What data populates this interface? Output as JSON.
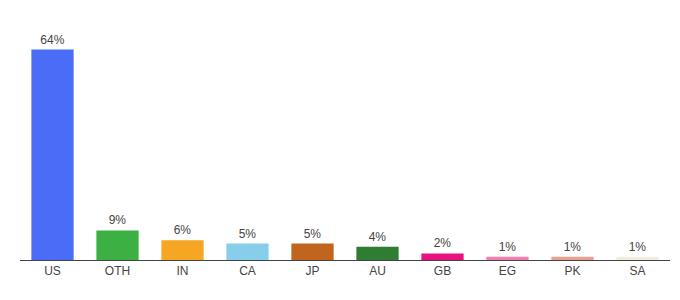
{
  "chart_data": {
    "type": "bar",
    "categories": [
      "US",
      "OTH",
      "IN",
      "CA",
      "JP",
      "AU",
      "GB",
      "EG",
      "PK",
      "SA"
    ],
    "values": [
      64,
      9,
      6,
      5,
      5,
      4,
      2,
      1,
      1,
      1
    ],
    "value_labels": [
      "64%",
      "9%",
      "6%",
      "5%",
      "5%",
      "4%",
      "2%",
      "1%",
      "1%",
      "1%"
    ],
    "data_labels": true,
    "colors": [
      "#4a6cf7",
      "#3cb043",
      "#f5a623",
      "#87ceeb",
      "#c0641e",
      "#2e7d32",
      "#e8117f",
      "#f47eb0",
      "#e8a090",
      "#f0ede0"
    ],
    "ylim": [
      0,
      73
    ],
    "tick_labels": "x",
    "grid": false
  }
}
